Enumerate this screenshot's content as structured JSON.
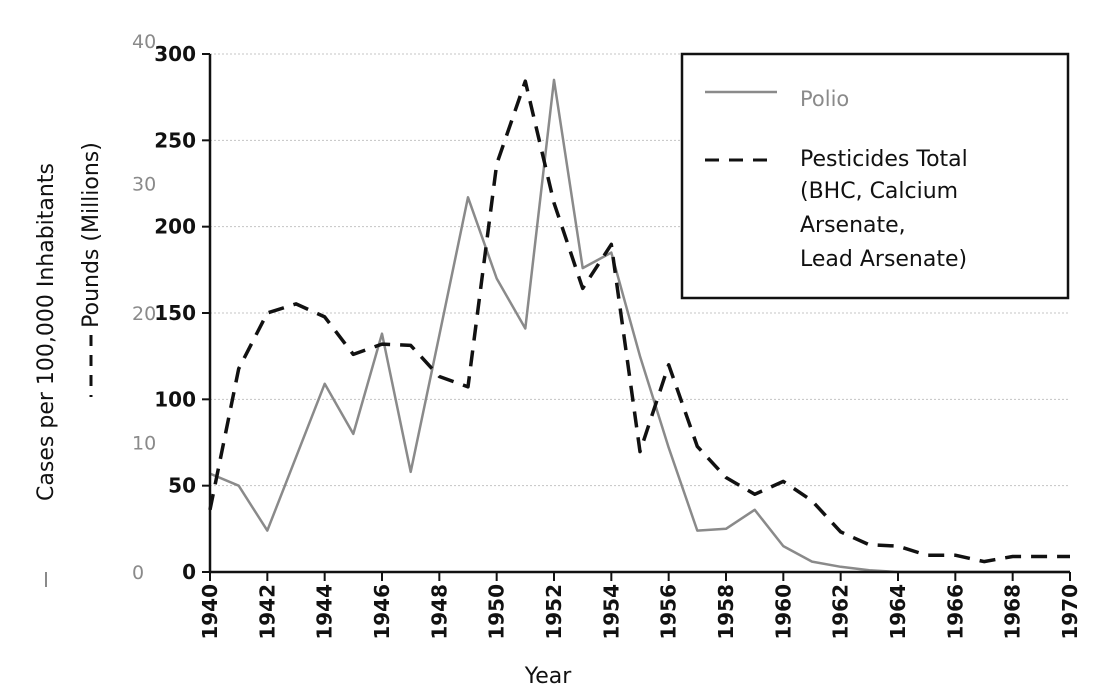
{
  "chart_data": {
    "type": "line",
    "xlabel": "Year",
    "ylabel_left": "Cases per 100,000 Inhabitants",
    "ylabel_right": "Pounds (Millions)",
    "xlim": [
      1940,
      1970
    ],
    "x_ticks": [
      1940,
      1942,
      1944,
      1946,
      1948,
      1950,
      1952,
      1954,
      1956,
      1958,
      1960,
      1962,
      1964,
      1966,
      1968,
      1970
    ],
    "ylim_cases": [
      0,
      300
    ],
    "y_ticks_cases": [
      0,
      50,
      100,
      150,
      200,
      250,
      300
    ],
    "ylim_pounds": [
      0,
      40
    ],
    "y_ticks_pounds": [
      0,
      10,
      20,
      30,
      40
    ],
    "grid": "horizontal",
    "legend_position": "top-right",
    "legend": [
      "Polio",
      "Pesticides Total (BHC, Calcium Arsenate, Lead Arsenate)"
    ],
    "legend_lines": [
      "Polio",
      "Pesticides Total",
      "(BHC, Calcium",
      "Arsenate,",
      "Lead Arsenate)"
    ],
    "series": [
      {
        "name": "Polio",
        "axis": "cases",
        "style": "solid",
        "color": "#8a8a8a",
        "points": [
          [
            1940,
            57
          ],
          [
            1941,
            50
          ],
          [
            1942,
            24
          ],
          [
            1944,
            109
          ],
          [
            1945,
            80
          ],
          [
            1946,
            138
          ],
          [
            1947,
            58
          ],
          [
            1948,
            137
          ],
          [
            1949,
            217
          ],
          [
            1950,
            170
          ],
          [
            1951,
            141
          ],
          [
            1952,
            285
          ],
          [
            1953,
            176
          ],
          [
            1954,
            185
          ],
          [
            1955,
            125
          ],
          [
            1956,
            72
          ],
          [
            1957,
            24
          ],
          [
            1958,
            25
          ],
          [
            1959,
            36
          ],
          [
            1960,
            15
          ],
          [
            1961,
            6
          ],
          [
            1962,
            3
          ],
          [
            1963,
            1
          ],
          [
            1964,
            0
          ],
          [
            1970,
            0
          ]
        ]
      },
      {
        "name": "Pesticides Total (BHC, Calcium Arsenate, Lead Arsenate)",
        "axis": "pounds",
        "style": "dashed",
        "color": "#111111",
        "points": [
          [
            1940,
            4.8
          ],
          [
            1941,
            15.7
          ],
          [
            1942,
            20.0
          ],
          [
            1943,
            20.7
          ],
          [
            1944,
            19.7
          ],
          [
            1945,
            16.8
          ],
          [
            1946,
            17.6
          ],
          [
            1947,
            17.5
          ],
          [
            1948,
            15.1
          ],
          [
            1949,
            14.3
          ],
          [
            1950,
            31.5
          ],
          [
            1951,
            37.9
          ],
          [
            1952,
            28.5
          ],
          [
            1953,
            21.9
          ],
          [
            1954,
            25.3
          ],
          [
            1955,
            9.3
          ],
          [
            1956,
            16.0
          ],
          [
            1957,
            9.7
          ],
          [
            1958,
            7.3
          ],
          [
            1959,
            6.0
          ],
          [
            1960,
            7.0
          ],
          [
            1961,
            5.5
          ],
          [
            1962,
            3.1
          ],
          [
            1963,
            2.1
          ],
          [
            1964,
            2.0
          ],
          [
            1965,
            1.3
          ],
          [
            1966,
            1.3
          ],
          [
            1967,
            0.8
          ],
          [
            1968,
            1.2
          ],
          [
            1969,
            1.2
          ],
          [
            1970,
            1.2
          ]
        ]
      }
    ]
  }
}
